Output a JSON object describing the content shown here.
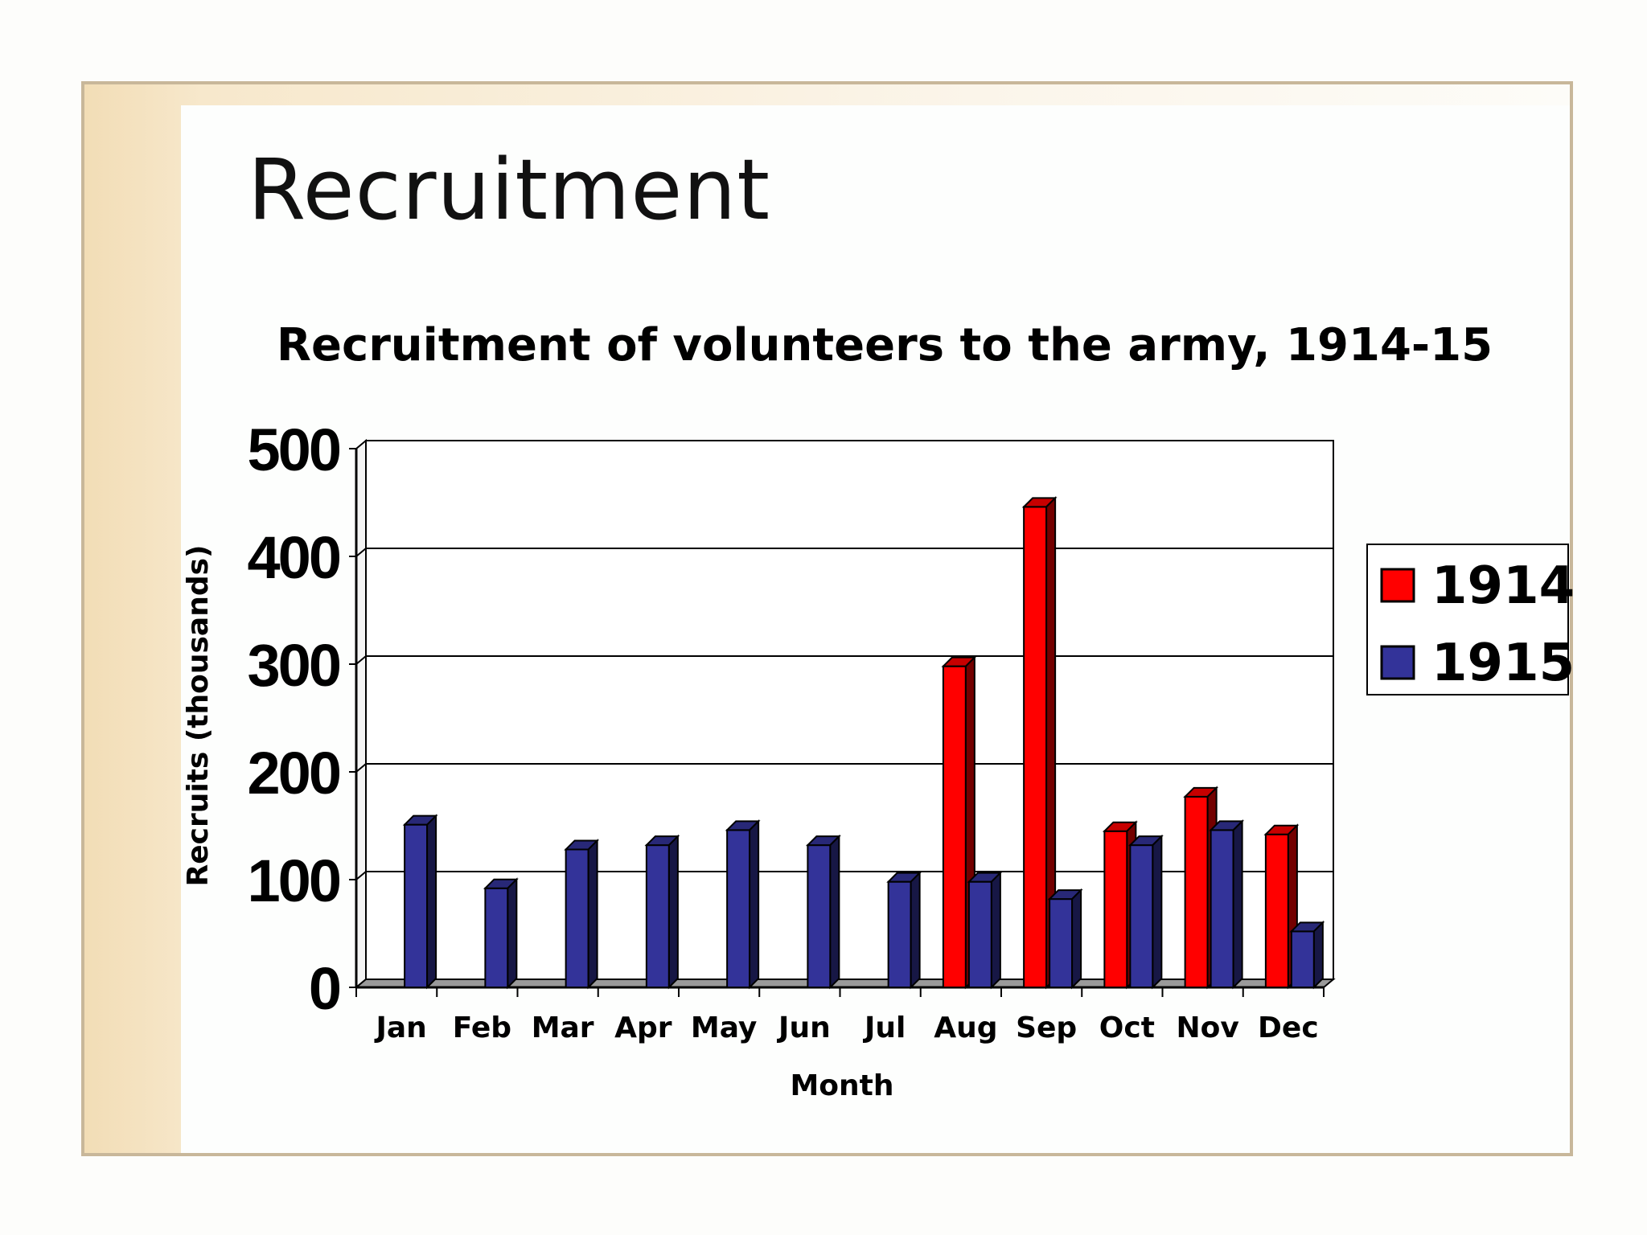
{
  "slide": {
    "title": "Recruitment"
  },
  "colors": {
    "series_1914": "#ff0000",
    "series_1915": "#333399",
    "frame": "#c8b79a"
  },
  "chart_data": {
    "type": "bar",
    "style": "3d-clustered-column",
    "title": "Recruitment of volunteers to the army, 1914-15",
    "xlabel": "Month",
    "ylabel": "Recruits (thousands)",
    "ylim": [
      0,
      500
    ],
    "yticks": [
      "0",
      "100",
      "200",
      "300",
      "400",
      "500"
    ],
    "grid": true,
    "legend_position": "right",
    "categories": [
      "Jan",
      "Feb",
      "Mar",
      "Apr",
      "May",
      "Jun",
      "Jul",
      "Aug",
      "Sep",
      "Oct",
      "Nov",
      "Dec"
    ],
    "series": [
      {
        "name": "1914",
        "color": "#ff0000",
        "values": [
          null,
          null,
          null,
          null,
          null,
          null,
          null,
          298,
          446,
          145,
          177,
          142
        ]
      },
      {
        "name": "1915",
        "color": "#333399",
        "values": [
          151,
          92,
          128,
          132,
          146,
          132,
          98,
          98,
          82,
          132,
          146,
          52
        ]
      }
    ]
  }
}
